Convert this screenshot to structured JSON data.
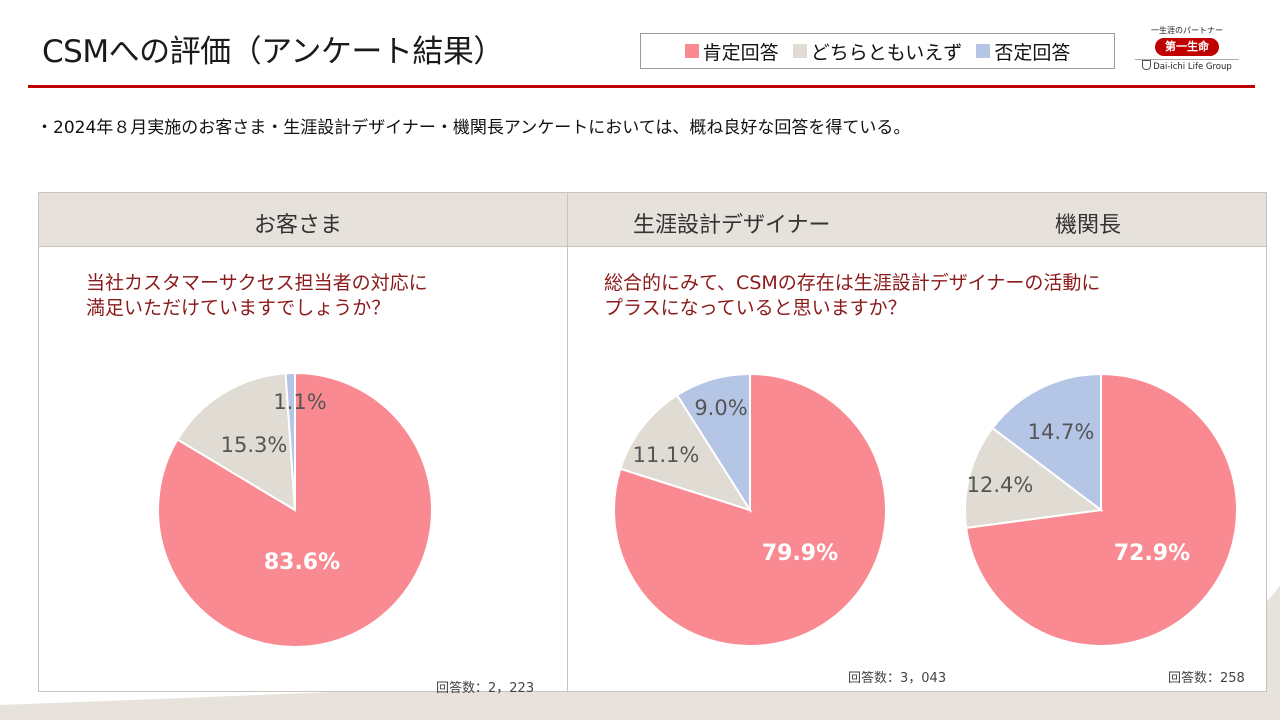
{
  "title": "CSMへの評価（アンケート結果）",
  "legend": [
    {
      "label": "肯定回答",
      "color": "#f98a92"
    },
    {
      "label": "どちらともいえず",
      "color": "#e0dcd4"
    },
    {
      "label": "否定回答",
      "color": "#b5c5e6"
    }
  ],
  "logo": {
    "tagline": "一生涯のパートナー",
    "name": "第一生命",
    "group": "Dai-ichi Life Group"
  },
  "bullet": "・2024年８月実施のお客さま・生涯設計デザイナー・機関長アンケートにおいては、概ね良好な回答を得ている。",
  "headers": {
    "customers": "お客さま",
    "designers": "生涯設計デザイナー",
    "managers": "機関長"
  },
  "questions": {
    "customers_line1": "当社カスタマーサクセス担当者の対応に",
    "customers_line2": "満足いただけていますでしょうか？",
    "staff_line1": "総合的にみて、CSMの存在は生涯設計デザイナーの活動に",
    "staff_line2": "プラスになっていると思いますか？"
  },
  "notes": {
    "customers": "回答数：2，223",
    "designers": "回答数：3，043",
    "managers": "回答数：258"
  },
  "chart_data": [
    {
      "type": "pie",
      "title": "お客さま",
      "categories": [
        "肯定回答",
        "どちらともいえず",
        "否定回答"
      ],
      "values": [
        83.6,
        15.3,
        1.1
      ],
      "labels": [
        "83.6%",
        "15.3%",
        "1.1%"
      ],
      "respondents": 2223
    },
    {
      "type": "pie",
      "title": "生涯設計デザイナー",
      "categories": [
        "肯定回答",
        "どちらともいえず",
        "否定回答"
      ],
      "values": [
        79.9,
        11.1,
        9.0
      ],
      "labels": [
        "79.9%",
        "11.1%",
        "9.0%"
      ],
      "respondents": 3043
    },
    {
      "type": "pie",
      "title": "機関長",
      "categories": [
        "肯定回答",
        "どちらともいえず",
        "否定回答"
      ],
      "values": [
        72.9,
        12.4,
        14.7
      ],
      "labels": [
        "72.9%",
        "12.4%",
        "14.7%"
      ],
      "respondents": 258
    }
  ]
}
